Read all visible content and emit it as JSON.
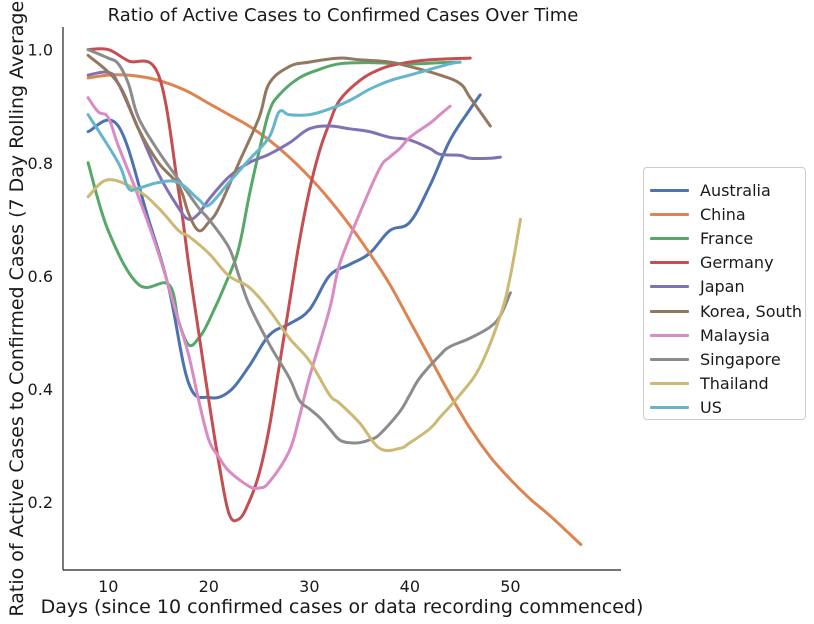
{
  "chart_data": {
    "type": "line",
    "title": "Ratio of Active Cases to Confirmed Cases Over Time",
    "xlabel": "Days (since 10 confirmed cases or data recording commenced)",
    "ylabel": "Ratio of Active Cases to Confirmed Cases (7 Day Rolling Average)",
    "xlim": [
      5.5,
      61
    ],
    "ylim": [
      0.08,
      1.04
    ],
    "xticks": [
      10,
      20,
      30,
      40,
      50
    ],
    "yticks": [
      0.2,
      0.4,
      0.6,
      0.8,
      1.0
    ],
    "xtick_labels": [
      "10",
      "20",
      "30",
      "40",
      "50"
    ],
    "ytick_labels": [
      "0.2",
      "0.4",
      "0.6",
      "0.8",
      "1.0"
    ],
    "grid": false,
    "legend_position": "right",
    "series": [
      {
        "name": "Australia",
        "color": "#4c72b0",
        "points": [
          [
            8,
            0.855
          ],
          [
            11,
            0.865
          ],
          [
            14,
            0.7
          ],
          [
            16,
            0.58
          ],
          [
            18,
            0.41
          ],
          [
            20,
            0.385
          ],
          [
            22,
            0.395
          ],
          [
            24,
            0.44
          ],
          [
            26,
            0.495
          ],
          [
            28,
            0.515
          ],
          [
            30,
            0.54
          ],
          [
            32,
            0.6
          ],
          [
            34,
            0.62
          ],
          [
            36,
            0.64
          ],
          [
            38,
            0.68
          ],
          [
            40,
            0.695
          ],
          [
            42,
            0.76
          ],
          [
            44,
            0.84
          ],
          [
            46,
            0.895
          ],
          [
            47,
            0.92
          ]
        ]
      },
      {
        "name": "China",
        "color": "#dd8452",
        "points": [
          [
            8,
            0.95
          ],
          [
            10,
            0.955
          ],
          [
            12,
            0.955
          ],
          [
            14,
            0.95
          ],
          [
            16,
            0.94
          ],
          [
            18,
            0.925
          ],
          [
            20,
            0.905
          ],
          [
            22,
            0.885
          ],
          [
            24,
            0.865
          ],
          [
            26,
            0.84
          ],
          [
            28,
            0.81
          ],
          [
            30,
            0.775
          ],
          [
            32,
            0.735
          ],
          [
            34,
            0.69
          ],
          [
            36,
            0.64
          ],
          [
            38,
            0.585
          ],
          [
            40,
            0.52
          ],
          [
            42,
            0.455
          ],
          [
            44,
            0.39
          ],
          [
            46,
            0.33
          ],
          [
            48,
            0.28
          ],
          [
            50,
            0.24
          ],
          [
            52,
            0.205
          ],
          [
            54,
            0.175
          ],
          [
            57,
            0.125
          ]
        ]
      },
      {
        "name": "France",
        "color": "#55a868",
        "points": [
          [
            8,
            0.8
          ],
          [
            10,
            0.68
          ],
          [
            13,
            0.585
          ],
          [
            16,
            0.585
          ],
          [
            17,
            0.52
          ],
          [
            18,
            0.478
          ],
          [
            19,
            0.49
          ],
          [
            20,
            0.52
          ],
          [
            22,
            0.6
          ],
          [
            23,
            0.65
          ],
          [
            24,
            0.74
          ],
          [
            25,
            0.82
          ],
          [
            26,
            0.89
          ],
          [
            27,
            0.92
          ],
          [
            29,
            0.95
          ],
          [
            31,
            0.965
          ],
          [
            33,
            0.975
          ],
          [
            36,
            0.977
          ],
          [
            39,
            0.975
          ],
          [
            41,
            0.975
          ],
          [
            43,
            0.977
          ],
          [
            45,
            0.978
          ]
        ]
      },
      {
        "name": "Germany",
        "color": "#c44e52",
        "points": [
          [
            8,
            1.0
          ],
          [
            10,
            1.0
          ],
          [
            12,
            0.98
          ],
          [
            15,
            0.955
          ],
          [
            17,
            0.75
          ],
          [
            18,
            0.62
          ],
          [
            19,
            0.5
          ],
          [
            20,
            0.38
          ],
          [
            21,
            0.27
          ],
          [
            22,
            0.18
          ],
          [
            23,
            0.17
          ],
          [
            24,
            0.2
          ],
          [
            25,
            0.25
          ],
          [
            26,
            0.33
          ],
          [
            27,
            0.44
          ],
          [
            28,
            0.55
          ],
          [
            29,
            0.66
          ],
          [
            30,
            0.75
          ],
          [
            31,
            0.82
          ],
          [
            32,
            0.87
          ],
          [
            33,
            0.91
          ],
          [
            35,
            0.945
          ],
          [
            37,
            0.965
          ],
          [
            39,
            0.975
          ],
          [
            42,
            0.982
          ],
          [
            46,
            0.985
          ]
        ]
      },
      {
        "name": "Japan",
        "color": "#8172b3",
        "points": [
          [
            8,
            0.955
          ],
          [
            10,
            0.96
          ],
          [
            11,
            0.94
          ],
          [
            13,
            0.86
          ],
          [
            15,
            0.78
          ],
          [
            17,
            0.72
          ],
          [
            18,
            0.7
          ],
          [
            19,
            0.71
          ],
          [
            20,
            0.735
          ],
          [
            22,
            0.775
          ],
          [
            24,
            0.8
          ],
          [
            26,
            0.815
          ],
          [
            28,
            0.835
          ],
          [
            30,
            0.86
          ],
          [
            32,
            0.865
          ],
          [
            34,
            0.86
          ],
          [
            36,
            0.855
          ],
          [
            38,
            0.845
          ],
          [
            40,
            0.84
          ],
          [
            42,
            0.825
          ],
          [
            43,
            0.815
          ],
          [
            45,
            0.813
          ],
          [
            46,
            0.808
          ],
          [
            48,
            0.808
          ],
          [
            49,
            0.81
          ]
        ]
      },
      {
        "name": "Korea, South",
        "color": "#937860",
        "points": [
          [
            8,
            0.99
          ],
          [
            11,
            0.94
          ],
          [
            13,
            0.86
          ],
          [
            15,
            0.8
          ],
          [
            17,
            0.76
          ],
          [
            18,
            0.71
          ],
          [
            19,
            0.68
          ],
          [
            20,
            0.695
          ],
          [
            21,
            0.72
          ],
          [
            23,
            0.8
          ],
          [
            25,
            0.88
          ],
          [
            26,
            0.94
          ],
          [
            28,
            0.97
          ],
          [
            30,
            0.978
          ],
          [
            33,
            0.985
          ],
          [
            35,
            0.982
          ],
          [
            38,
            0.978
          ],
          [
            40,
            0.97
          ],
          [
            43,
            0.955
          ],
          [
            45,
            0.94
          ],
          [
            46,
            0.915
          ],
          [
            48,
            0.865
          ]
        ]
      },
      {
        "name": "Malaysia",
        "color": "#da8bc3",
        "points": [
          [
            8,
            0.915
          ],
          [
            9,
            0.89
          ],
          [
            10,
            0.88
          ],
          [
            11,
            0.83
          ],
          [
            13,
            0.74
          ],
          [
            15,
            0.64
          ],
          [
            17,
            0.52
          ],
          [
            18,
            0.46
          ],
          [
            19,
            0.38
          ],
          [
            20,
            0.31
          ],
          [
            21,
            0.28
          ],
          [
            22,
            0.255
          ],
          [
            24,
            0.228
          ],
          [
            25,
            0.225
          ],
          [
            26,
            0.235
          ],
          [
            28,
            0.29
          ],
          [
            29,
            0.35
          ],
          [
            30,
            0.42
          ],
          [
            32,
            0.54
          ],
          [
            33,
            0.62
          ],
          [
            35,
            0.71
          ],
          [
            37,
            0.79
          ],
          [
            38,
            0.81
          ],
          [
            39,
            0.825
          ],
          [
            40,
            0.845
          ],
          [
            42,
            0.87
          ],
          [
            43,
            0.885
          ],
          [
            44,
            0.9
          ]
        ]
      },
      {
        "name": "Singapore",
        "color": "#8c8c8c",
        "points": [
          [
            8,
            1.0
          ],
          [
            10,
            0.985
          ],
          [
            11,
            0.975
          ],
          [
            12,
            0.94
          ],
          [
            13,
            0.88
          ],
          [
            15,
            0.82
          ],
          [
            17,
            0.77
          ],
          [
            19,
            0.72
          ],
          [
            20,
            0.7
          ],
          [
            22,
            0.65
          ],
          [
            23,
            0.6
          ],
          [
            24,
            0.55
          ],
          [
            26,
            0.48
          ],
          [
            28,
            0.42
          ],
          [
            29,
            0.38
          ],
          [
            30,
            0.365
          ],
          [
            31,
            0.35
          ],
          [
            32,
            0.33
          ],
          [
            33,
            0.31
          ],
          [
            34,
            0.305
          ],
          [
            35,
            0.305
          ],
          [
            36,
            0.31
          ],
          [
            37,
            0.32
          ],
          [
            39,
            0.36
          ],
          [
            40,
            0.39
          ],
          [
            41,
            0.42
          ],
          [
            43,
            0.46
          ],
          [
            44,
            0.475
          ],
          [
            46,
            0.49
          ],
          [
            48,
            0.51
          ],
          [
            49,
            0.53
          ],
          [
            50,
            0.57
          ]
        ]
      },
      {
        "name": "Thailand",
        "color": "#ccb974",
        "points": [
          [
            8,
            0.74
          ],
          [
            10,
            0.77
          ],
          [
            13,
            0.75
          ],
          [
            15,
            0.72
          ],
          [
            17,
            0.68
          ],
          [
            18,
            0.67
          ],
          [
            20,
            0.64
          ],
          [
            22,
            0.6
          ],
          [
            24,
            0.58
          ],
          [
            26,
            0.54
          ],
          [
            28,
            0.49
          ],
          [
            30,
            0.45
          ],
          [
            32,
            0.39
          ],
          [
            33,
            0.375
          ],
          [
            35,
            0.34
          ],
          [
            37,
            0.295
          ],
          [
            39,
            0.295
          ],
          [
            40,
            0.305
          ],
          [
            42,
            0.33
          ],
          [
            43,
            0.35
          ],
          [
            45,
            0.39
          ],
          [
            47,
            0.44
          ],
          [
            49,
            0.53
          ],
          [
            50,
            0.6
          ],
          [
            51,
            0.7
          ]
        ]
      },
      {
        "name": "US",
        "color": "#64b5cd",
        "points": [
          [
            8,
            0.885
          ],
          [
            11,
            0.8
          ],
          [
            12,
            0.755
          ],
          [
            13,
            0.755
          ],
          [
            15,
            0.765
          ],
          [
            17,
            0.765
          ],
          [
            19,
            0.735
          ],
          [
            20,
            0.725
          ],
          [
            22,
            0.765
          ],
          [
            24,
            0.805
          ],
          [
            26,
            0.845
          ],
          [
            27,
            0.89
          ],
          [
            28,
            0.885
          ],
          [
            30,
            0.885
          ],
          [
            32,
            0.895
          ],
          [
            34,
            0.91
          ],
          [
            36,
            0.93
          ],
          [
            38,
            0.945
          ],
          [
            40,
            0.955
          ],
          [
            42,
            0.965
          ],
          [
            44,
            0.975
          ],
          [
            45,
            0.978
          ]
        ]
      }
    ]
  }
}
